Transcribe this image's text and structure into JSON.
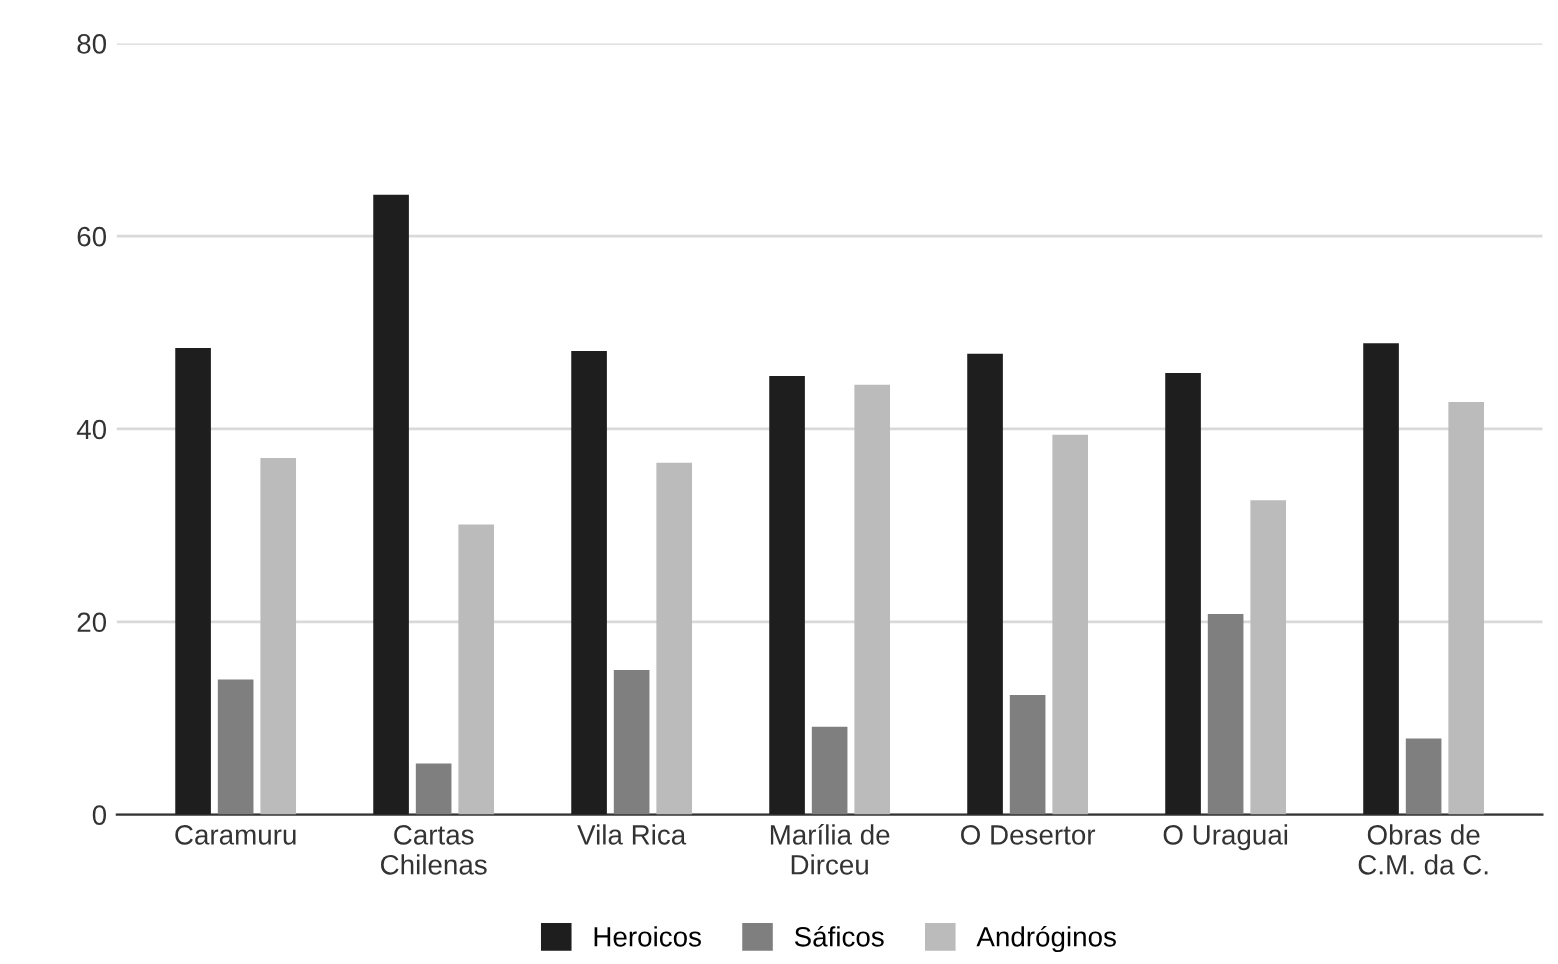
{
  "chart_data": {
    "type": "bar",
    "categories": [
      "Caramuru",
      "Cartas\nChilenas",
      "Vila Rica",
      "Marília de\nDirceu",
      "O Desertor",
      "O Uraguai",
      "Obras de\nC.M. da C."
    ],
    "series": [
      {
        "name": "Heroicos",
        "color": "#1e1e1e",
        "values": [
          48.4,
          64.3,
          48.1,
          45.5,
          47.8,
          45.8,
          48.9
        ]
      },
      {
        "name": "Sáficos",
        "color": "#7f7f7f",
        "values": [
          14.0,
          5.3,
          15.0,
          9.1,
          12.4,
          20.8,
          7.9
        ]
      },
      {
        "name": "Andróginos",
        "color": "#bbbbbb",
        "values": [
          37.0,
          30.1,
          36.5,
          44.6,
          39.4,
          32.6,
          42.8
        ]
      }
    ],
    "ylim": [
      0,
      80
    ],
    "yticks": [
      0,
      20,
      40,
      60,
      80
    ],
    "grid": "y",
    "legend": "bottom"
  }
}
